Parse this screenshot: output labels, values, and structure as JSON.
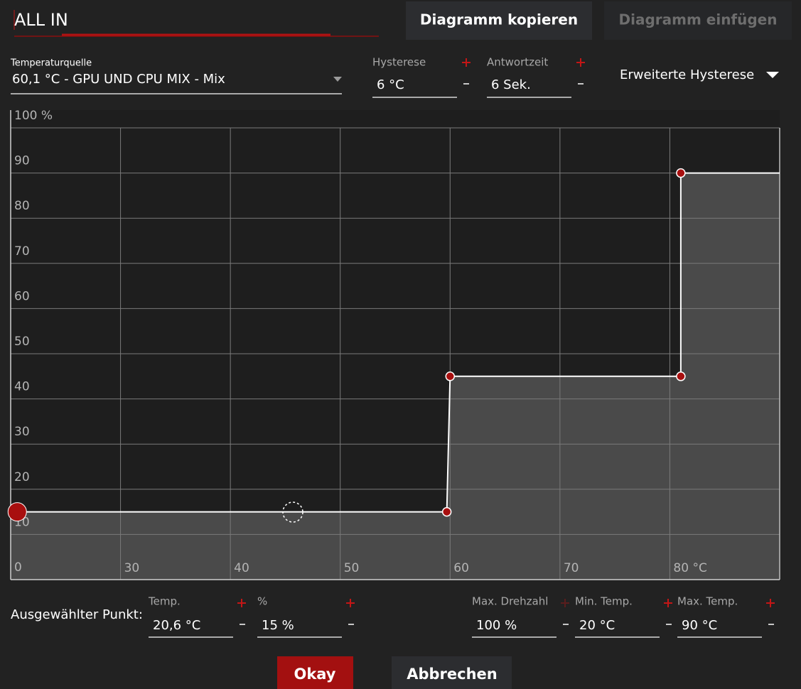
{
  "title": "ALL IN",
  "buttons": {
    "copy": "Diagramm kopieren",
    "paste": "Diagramm einfügen",
    "ok": "Okay",
    "cancel": "Abbrechen"
  },
  "source": {
    "label": "Temperaturquelle",
    "value": "60,1 °C - GPU UND CPU MIX - Mix"
  },
  "hysteresis": {
    "label": "Hysterese",
    "value": "6 °C"
  },
  "response": {
    "label": "Antwortzeit",
    "value": "6 Sek."
  },
  "extended": "Erweiterte Hysterese",
  "selected": {
    "label": "Ausgewählter Punkt:",
    "fields": [
      {
        "label": "Temp.",
        "value": "20,6 °C"
      },
      {
        "label": "%",
        "value": "15 %"
      },
      {
        "label": "Max. Drehzahl",
        "value": "100 %"
      },
      {
        "label": "Min. Temp.",
        "value": "20 °C"
      },
      {
        "label": "Max. Temp.",
        "value": "90 °C"
      }
    ]
  },
  "chart_data": {
    "type": "line",
    "x": [
      20.6,
      59.7,
      60,
      81,
      81
    ],
    "series": [
      {
        "color": "#ffffff",
        "values": [
          15,
          15,
          45,
          45,
          90
        ]
      }
    ],
    "xlim": [
      20,
      90
    ],
    "xticks": [
      30,
      40,
      50,
      60,
      70,
      {
        "value": 80,
        "label": "80 °C"
      }
    ],
    "ylim": [
      0,
      100
    ],
    "yticks": [
      0,
      10,
      20,
      30,
      40,
      50,
      60,
      70,
      80,
      90,
      {
        "value": 100,
        "label": "100 %"
      }
    ],
    "grid": true
  }
}
